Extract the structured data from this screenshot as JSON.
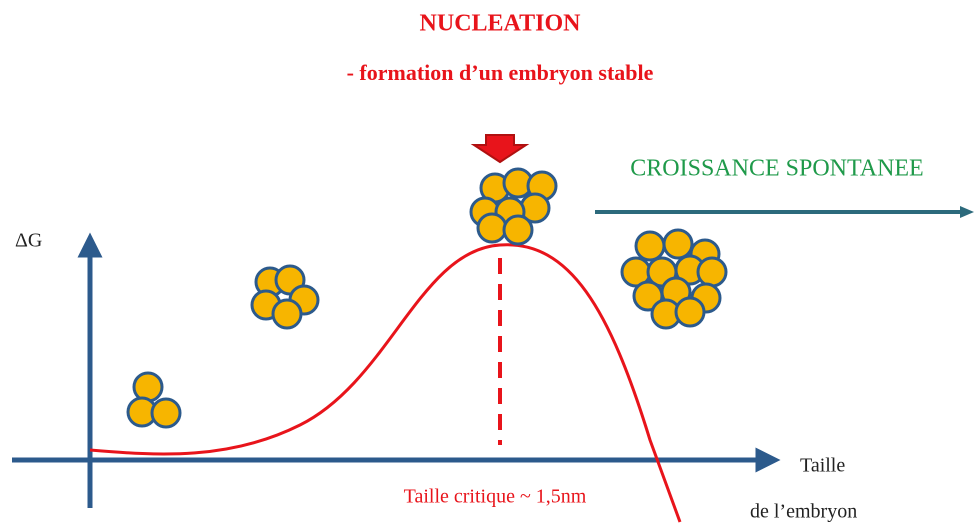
{
  "title": "NUCLEATION",
  "subtitle": "- formation d’un embryon stable",
  "growth_label": "CROISSANCE SPONTANEE",
  "y_axis_label": "ΔG",
  "x_axis_label": [
    "Taille",
    "de l’embryon"
  ],
  "critical_label": "Taille critique ~ 1,5nm"
}
